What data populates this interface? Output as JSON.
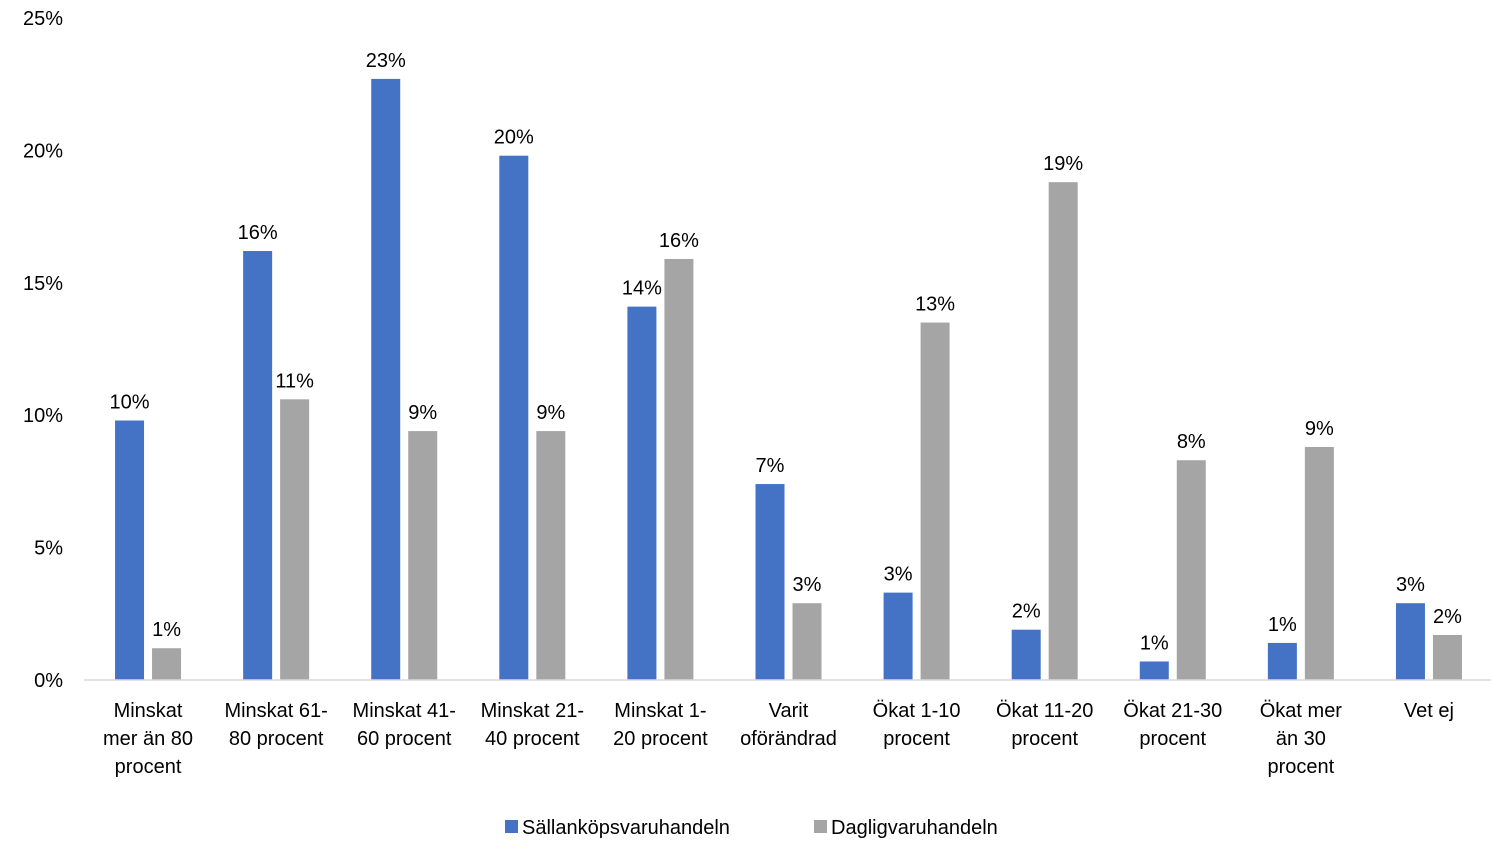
{
  "chart_data": {
    "type": "bar",
    "title": "",
    "xlabel": "",
    "ylabel": "",
    "ylim": [
      0,
      25
    ],
    "y_ticks": [
      0,
      5,
      10,
      15,
      20,
      25
    ],
    "y_tick_labels": [
      "0%",
      "5%",
      "10%",
      "15%",
      "20%",
      "25%"
    ],
    "grid": false,
    "legend_position": "bottom-center",
    "categories": [
      [
        "Minskat",
        "mer än 80",
        "procent"
      ],
      [
        "Minskat 61-",
        "80 procent"
      ],
      [
        "Minskat 41-",
        "60 procent"
      ],
      [
        "Minskat 21-",
        "40 procent"
      ],
      [
        "Minskat 1-",
        "20 procent"
      ],
      [
        "Varit",
        "oförändrad"
      ],
      [
        "Ökat 1-10",
        "procent"
      ],
      [
        "Ökat 11-20",
        "procent"
      ],
      [
        "Ökat 21-30",
        "procent"
      ],
      [
        "Ökat mer",
        "än 30",
        "procent"
      ],
      [
        "Vet ej"
      ]
    ],
    "series": [
      {
        "name": "Sällanköpsvaruhandeln",
        "color": "#4472c4",
        "values": [
          9.8,
          16.2,
          22.7,
          19.8,
          14.1,
          7.4,
          3.3,
          1.9,
          0.7,
          1.4,
          2.9
        ],
        "labels": [
          "10%",
          "16%",
          "23%",
          "20%",
          "14%",
          "7%",
          "3%",
          "2%",
          "1%",
          "1%",
          "3%"
        ]
      },
      {
        "name": "Dagligvaruhandeln",
        "color": "#a5a5a5",
        "values": [
          1.2,
          10.6,
          9.4,
          9.4,
          15.9,
          2.9,
          13.5,
          18.8,
          8.3,
          8.8,
          1.7
        ],
        "labels": [
          "1%",
          "11%",
          "9%",
          "9%",
          "16%",
          "3%",
          "13%",
          "19%",
          "8%",
          "9%",
          "2%"
        ]
      }
    ]
  }
}
